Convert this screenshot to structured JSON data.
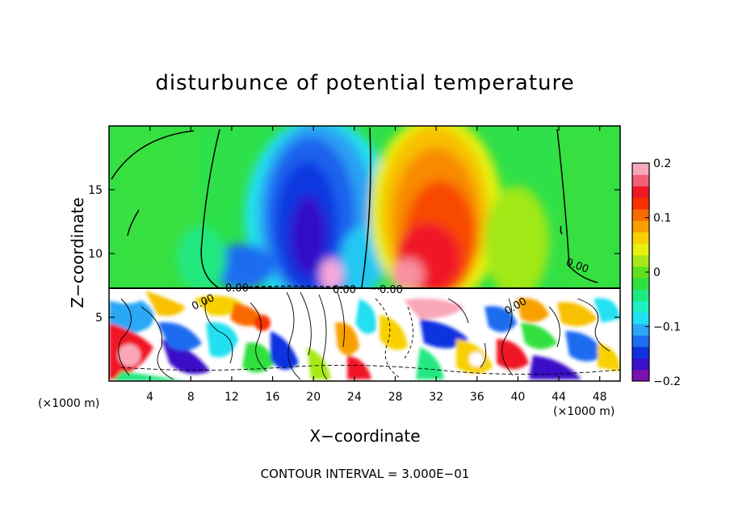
{
  "chart_data": {
    "type": "heatmap",
    "title": "disturbunce of potential temperature",
    "xlabel": "X−coordinate",
    "ylabel": "Z−coordinate",
    "x_unit_note": "(×1000 m)",
    "x_unit_note_right": "(×1000 m)",
    "xlim": [
      0,
      50
    ],
    "ylim": [
      0,
      20
    ],
    "x_ticks": [
      4,
      8,
      12,
      16,
      20,
      24,
      28,
      32,
      36,
      40,
      44,
      48
    ],
    "y_ticks": [
      5,
      10,
      15
    ],
    "colorbar": {
      "range": [
        -0.2,
        0.2
      ],
      "tick_labels": [
        "0.2",
        "0.1",
        "0",
        "−0.1",
        "−0.2"
      ],
      "tick_values": [
        0.2,
        0.1,
        0,
        -0.1,
        -0.2
      ],
      "colors": [
        "#7a10b0",
        "#3a10c8",
        "#1030e0",
        "#1e6cf0",
        "#2aa8f5",
        "#22e0f0",
        "#1ef0c0",
        "#20e880",
        "#30e040",
        "#60e020",
        "#a8e818",
        "#e8f010",
        "#f8d000",
        "#f8a000",
        "#f86a00",
        "#f83000",
        "#f01828",
        "#f06078",
        "#f8a8b8"
      ]
    },
    "contour_labels": [
      "0.00",
      "0.00",
      "0.00",
      "0.00",
      "0.00",
      "0.00"
    ],
    "layer_boundary_z": 7.2,
    "upper_fields": [
      {
        "name": "cold anomaly",
        "x": 20,
        "z": 12.5,
        "value": -0.2
      },
      {
        "name": "warm anomaly",
        "x": 32,
        "z": 10.5,
        "value": 0.17
      }
    ],
    "footer": "CONTOUR INTERVAL = 3.000E−01"
  }
}
